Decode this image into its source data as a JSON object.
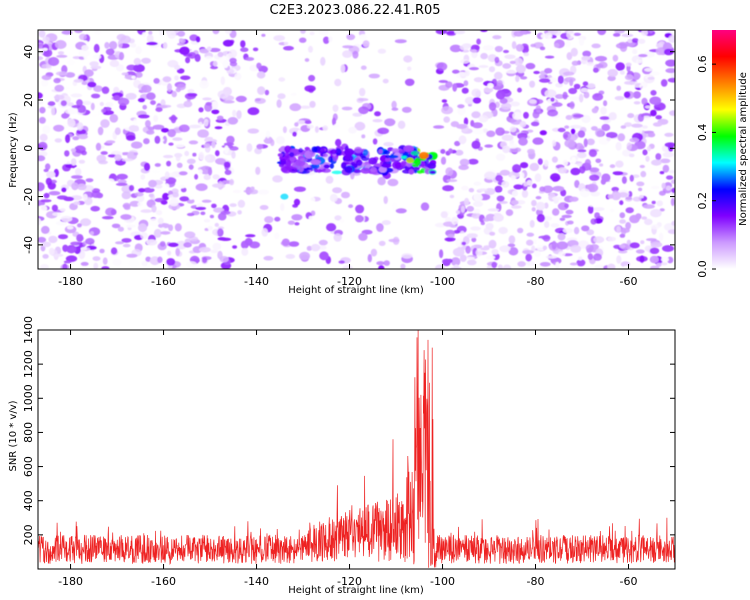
{
  "title": "C2E3.2023.086.22.41.R05",
  "colors": {
    "snr_line": "#ee2222",
    "axes": "#000000",
    "background": "#ffffff"
  },
  "chart_data": [
    {
      "type": "heatmap",
      "xlabel": "Height of straight line (km)",
      "ylabel": "Frequency (Hz)",
      "xlim": [
        -187,
        -50
      ],
      "ylim": [
        -50,
        49
      ],
      "xticks": [
        -180,
        -160,
        -140,
        -120,
        -100,
        -80,
        -60
      ],
      "yticks": [
        -40,
        -20,
        0,
        20,
        40
      ],
      "colorbar": {
        "label": "Normalized spectral amplitude",
        "range": [
          0.0,
          0.7
        ],
        "ticks": [
          0.0,
          0.2,
          0.4,
          0.6
        ],
        "colors": [
          "#ffffff",
          "#cc99ff",
          "#7f00ff",
          "#0000ff",
          "#00ffff",
          "#00ff00",
          "#ffff00",
          "#ff8000",
          "#ff0000",
          "#ff0080"
        ]
      },
      "features": [
        {
          "kind": "background_noise",
          "amplitude_range": [
            0.0,
            0.15
          ]
        },
        {
          "kind": "low_noise_gap",
          "x_range": [
            -107,
            -101
          ]
        },
        {
          "kind": "signal_band",
          "x_range": [
            -135,
            -102
          ],
          "frequency_center": -5,
          "frequency_width": 10,
          "peak_amplitude": 0.55,
          "peak_x": -104
        },
        {
          "kind": "isolated_blob",
          "x": -134,
          "frequency": -20,
          "amplitude": 0.3
        }
      ]
    },
    {
      "type": "line",
      "xlabel": "Height of straight line (km)",
      "ylabel": "SNR (10 * v/v)",
      "xlim": [
        -187,
        -50
      ],
      "ylim": [
        0,
        1400
      ],
      "xticks": [
        -180,
        -160,
        -140,
        -120,
        -100,
        -80,
        -60
      ],
      "yticks": [
        200,
        400,
        600,
        800,
        1000,
        1200,
        1400
      ],
      "features": [
        {
          "kind": "noise_floor",
          "x_range": [
            -187,
            -50
          ],
          "mean": 120,
          "spike_max": 340
        },
        {
          "kind": "elevated_noise",
          "x_range": [
            -130,
            -108
          ],
          "max": 690
        },
        {
          "kind": "peak",
          "x_range": [
            -106,
            -102
          ],
          "max": 1400
        },
        {
          "kind": "dropout",
          "x_range": [
            -103,
            -101
          ],
          "min": 0
        }
      ]
    }
  ]
}
